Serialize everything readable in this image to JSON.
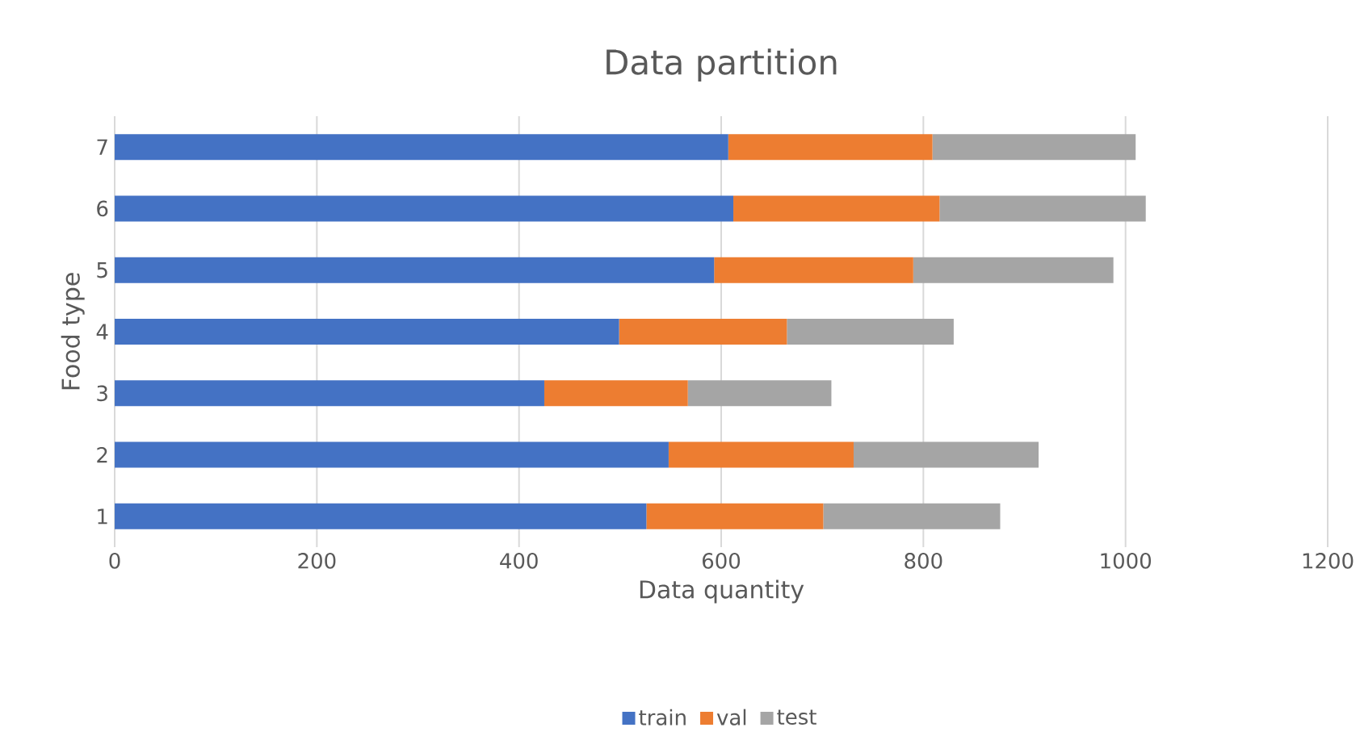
{
  "chart_data": {
    "type": "bar",
    "orientation": "horizontal",
    "stacked": true,
    "title": "Data partition",
    "xlabel": "Data quantity",
    "ylabel": "Food type",
    "categories": [
      "7",
      "6",
      "5",
      "4",
      "3",
      "2",
      "1"
    ],
    "series": [
      {
        "name": "train",
        "color": "#4472c4",
        "values": [
          607,
          612,
          593,
          499,
          425,
          548,
          526
        ]
      },
      {
        "name": "val",
        "color": "#ed7d31",
        "values": [
          202,
          204,
          197,
          166,
          142,
          183,
          175
        ]
      },
      {
        "name": "test",
        "color": "#a5a5a5",
        "values": [
          201,
          204,
          198,
          165,
          142,
          183,
          175
        ]
      }
    ],
    "xlim": [
      0,
      1200
    ],
    "xticks": [
      0,
      200,
      400,
      600,
      800,
      1000,
      1200
    ],
    "grid": "x",
    "legend": "bottom"
  }
}
